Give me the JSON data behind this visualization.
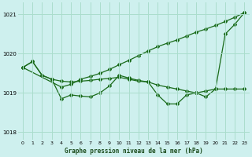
{
  "title": "Graphe pression niveau de la mer (hPa)",
  "background_color": "#cef0ee",
  "grid_color": "#aaddcc",
  "line_color": "#1a6b1a",
  "xlim": [
    -0.5,
    23.5
  ],
  "ylim": [
    1017.8,
    1021.3
  ],
  "yticks": [
    1018,
    1019,
    1020,
    1021
  ],
  "xticks": [
    0,
    1,
    2,
    3,
    4,
    5,
    6,
    7,
    8,
    9,
    10,
    11,
    12,
    13,
    14,
    15,
    16,
    17,
    18,
    19,
    20,
    21,
    22,
    23
  ],
  "line1": [
    1019.65,
    1019.8,
    1019.45,
    1019.35,
    1019.3,
    1019.28,
    1019.3,
    1019.32,
    1019.35,
    1019.37,
    1019.4,
    1019.35,
    1019.3,
    1019.28,
    1019.2,
    1019.15,
    1019.1,
    1019.05,
    1019.0,
    1019.05,
    1019.1,
    1019.1,
    1019.1,
    1019.1
  ],
  "line2": [
    1019.65,
    1019.8,
    1019.45,
    1019.35,
    1018.85,
    1018.95,
    1018.92,
    1018.9,
    1019.0,
    1019.18,
    1019.45,
    1019.38,
    1019.32,
    1019.28,
    1018.95,
    1018.72,
    1018.72,
    1018.95,
    1019.0,
    1018.9,
    1019.1,
    1020.5,
    1020.75,
    1021.05
  ],
  "line3_x": [
    0,
    4,
    5,
    6,
    7,
    8,
    9,
    10,
    11,
    12,
    13,
    14,
    15,
    16,
    17,
    18,
    19,
    20,
    21,
    22,
    23
  ],
  "line3_y": [
    1019.65,
    1019.15,
    1019.22,
    1019.35,
    1019.42,
    1019.5,
    1019.6,
    1019.72,
    1019.83,
    1019.95,
    1020.07,
    1020.18,
    1020.27,
    1020.35,
    1020.45,
    1020.55,
    1020.63,
    1020.72,
    1020.82,
    1020.93,
    1021.05
  ]
}
